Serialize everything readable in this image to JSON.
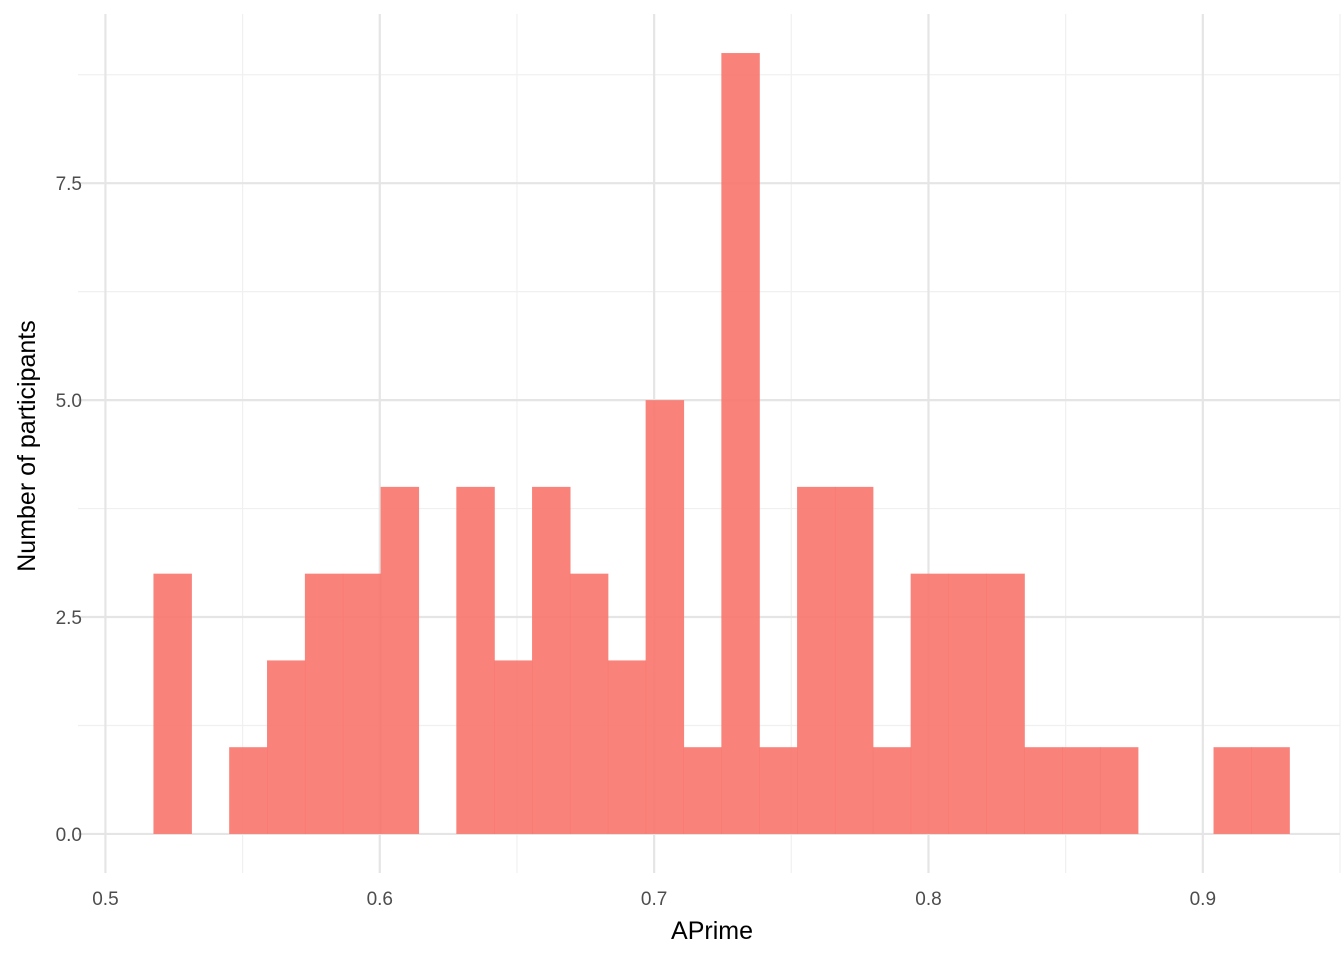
{
  "chart_data": {
    "type": "bar",
    "subtype": "histogram",
    "title": "",
    "xlabel": "APrime",
    "ylabel": "Number of participants",
    "bar_color": "#F8766D",
    "bar_opacity": 0.9,
    "grid": true,
    "xlim": [
      0.49,
      0.95
    ],
    "ylim": [
      -0.45,
      9.45
    ],
    "x_ticks": [
      {
        "value": 0.5,
        "label": "0.5"
      },
      {
        "value": 0.6,
        "label": "0.6"
      },
      {
        "value": 0.7,
        "label": "0.7"
      },
      {
        "value": 0.8,
        "label": "0.8"
      },
      {
        "value": 0.9,
        "label": "0.9"
      }
    ],
    "x_minor_ticks": [
      0.55,
      0.65,
      0.75,
      0.85,
      0.95
    ],
    "y_ticks": [
      {
        "value": 0.0,
        "label": "0.0"
      },
      {
        "value": 2.5,
        "label": "2.5"
      },
      {
        "value": 5.0,
        "label": "5.0"
      },
      {
        "value": 7.5,
        "label": "7.5"
      }
    ],
    "y_minor_ticks": [
      1.25,
      3.75,
      6.25,
      8.75
    ],
    "bins": [
      {
        "x0": 0.5175,
        "x1": 0.5313,
        "count": 3
      },
      {
        "x0": 0.5313,
        "x1": 0.5451,
        "count": 0
      },
      {
        "x0": 0.5451,
        "x1": 0.5589,
        "count": 1
      },
      {
        "x0": 0.5589,
        "x1": 0.5727,
        "count": 2
      },
      {
        "x0": 0.5727,
        "x1": 0.5865,
        "count": 3
      },
      {
        "x0": 0.5865,
        "x1": 0.6003,
        "count": 3
      },
      {
        "x0": 0.6003,
        "x1": 0.6141,
        "count": 4
      },
      {
        "x0": 0.6141,
        "x1": 0.6279,
        "count": 0
      },
      {
        "x0": 0.6279,
        "x1": 0.6417,
        "count": 4
      },
      {
        "x0": 0.6417,
        "x1": 0.6555,
        "count": 2
      },
      {
        "x0": 0.6555,
        "x1": 0.6693,
        "count": 4
      },
      {
        "x0": 0.6693,
        "x1": 0.6831,
        "count": 3
      },
      {
        "x0": 0.6831,
        "x1": 0.6969,
        "count": 2
      },
      {
        "x0": 0.6969,
        "x1": 0.7107,
        "count": 5
      },
      {
        "x0": 0.7107,
        "x1": 0.7245,
        "count": 1
      },
      {
        "x0": 0.7245,
        "x1": 0.7383,
        "count": 9
      },
      {
        "x0": 0.7383,
        "x1": 0.7521,
        "count": 1
      },
      {
        "x0": 0.7521,
        "x1": 0.7659,
        "count": 4
      },
      {
        "x0": 0.7659,
        "x1": 0.7797,
        "count": 4
      },
      {
        "x0": 0.7797,
        "x1": 0.7935,
        "count": 1
      },
      {
        "x0": 0.7935,
        "x1": 0.8073,
        "count": 3
      },
      {
        "x0": 0.8073,
        "x1": 0.8211,
        "count": 3
      },
      {
        "x0": 0.8211,
        "x1": 0.8349,
        "count": 3
      },
      {
        "x0": 0.8349,
        "x1": 0.8487,
        "count": 1
      },
      {
        "x0": 0.8487,
        "x1": 0.8625,
        "count": 1
      },
      {
        "x0": 0.8625,
        "x1": 0.8763,
        "count": 1
      },
      {
        "x0": 0.8763,
        "x1": 0.8901,
        "count": 0
      },
      {
        "x0": 0.8901,
        "x1": 0.9039,
        "count": 0
      },
      {
        "x0": 0.9039,
        "x1": 0.9177,
        "count": 1
      },
      {
        "x0": 0.9177,
        "x1": 0.9315,
        "count": 1
      }
    ]
  }
}
